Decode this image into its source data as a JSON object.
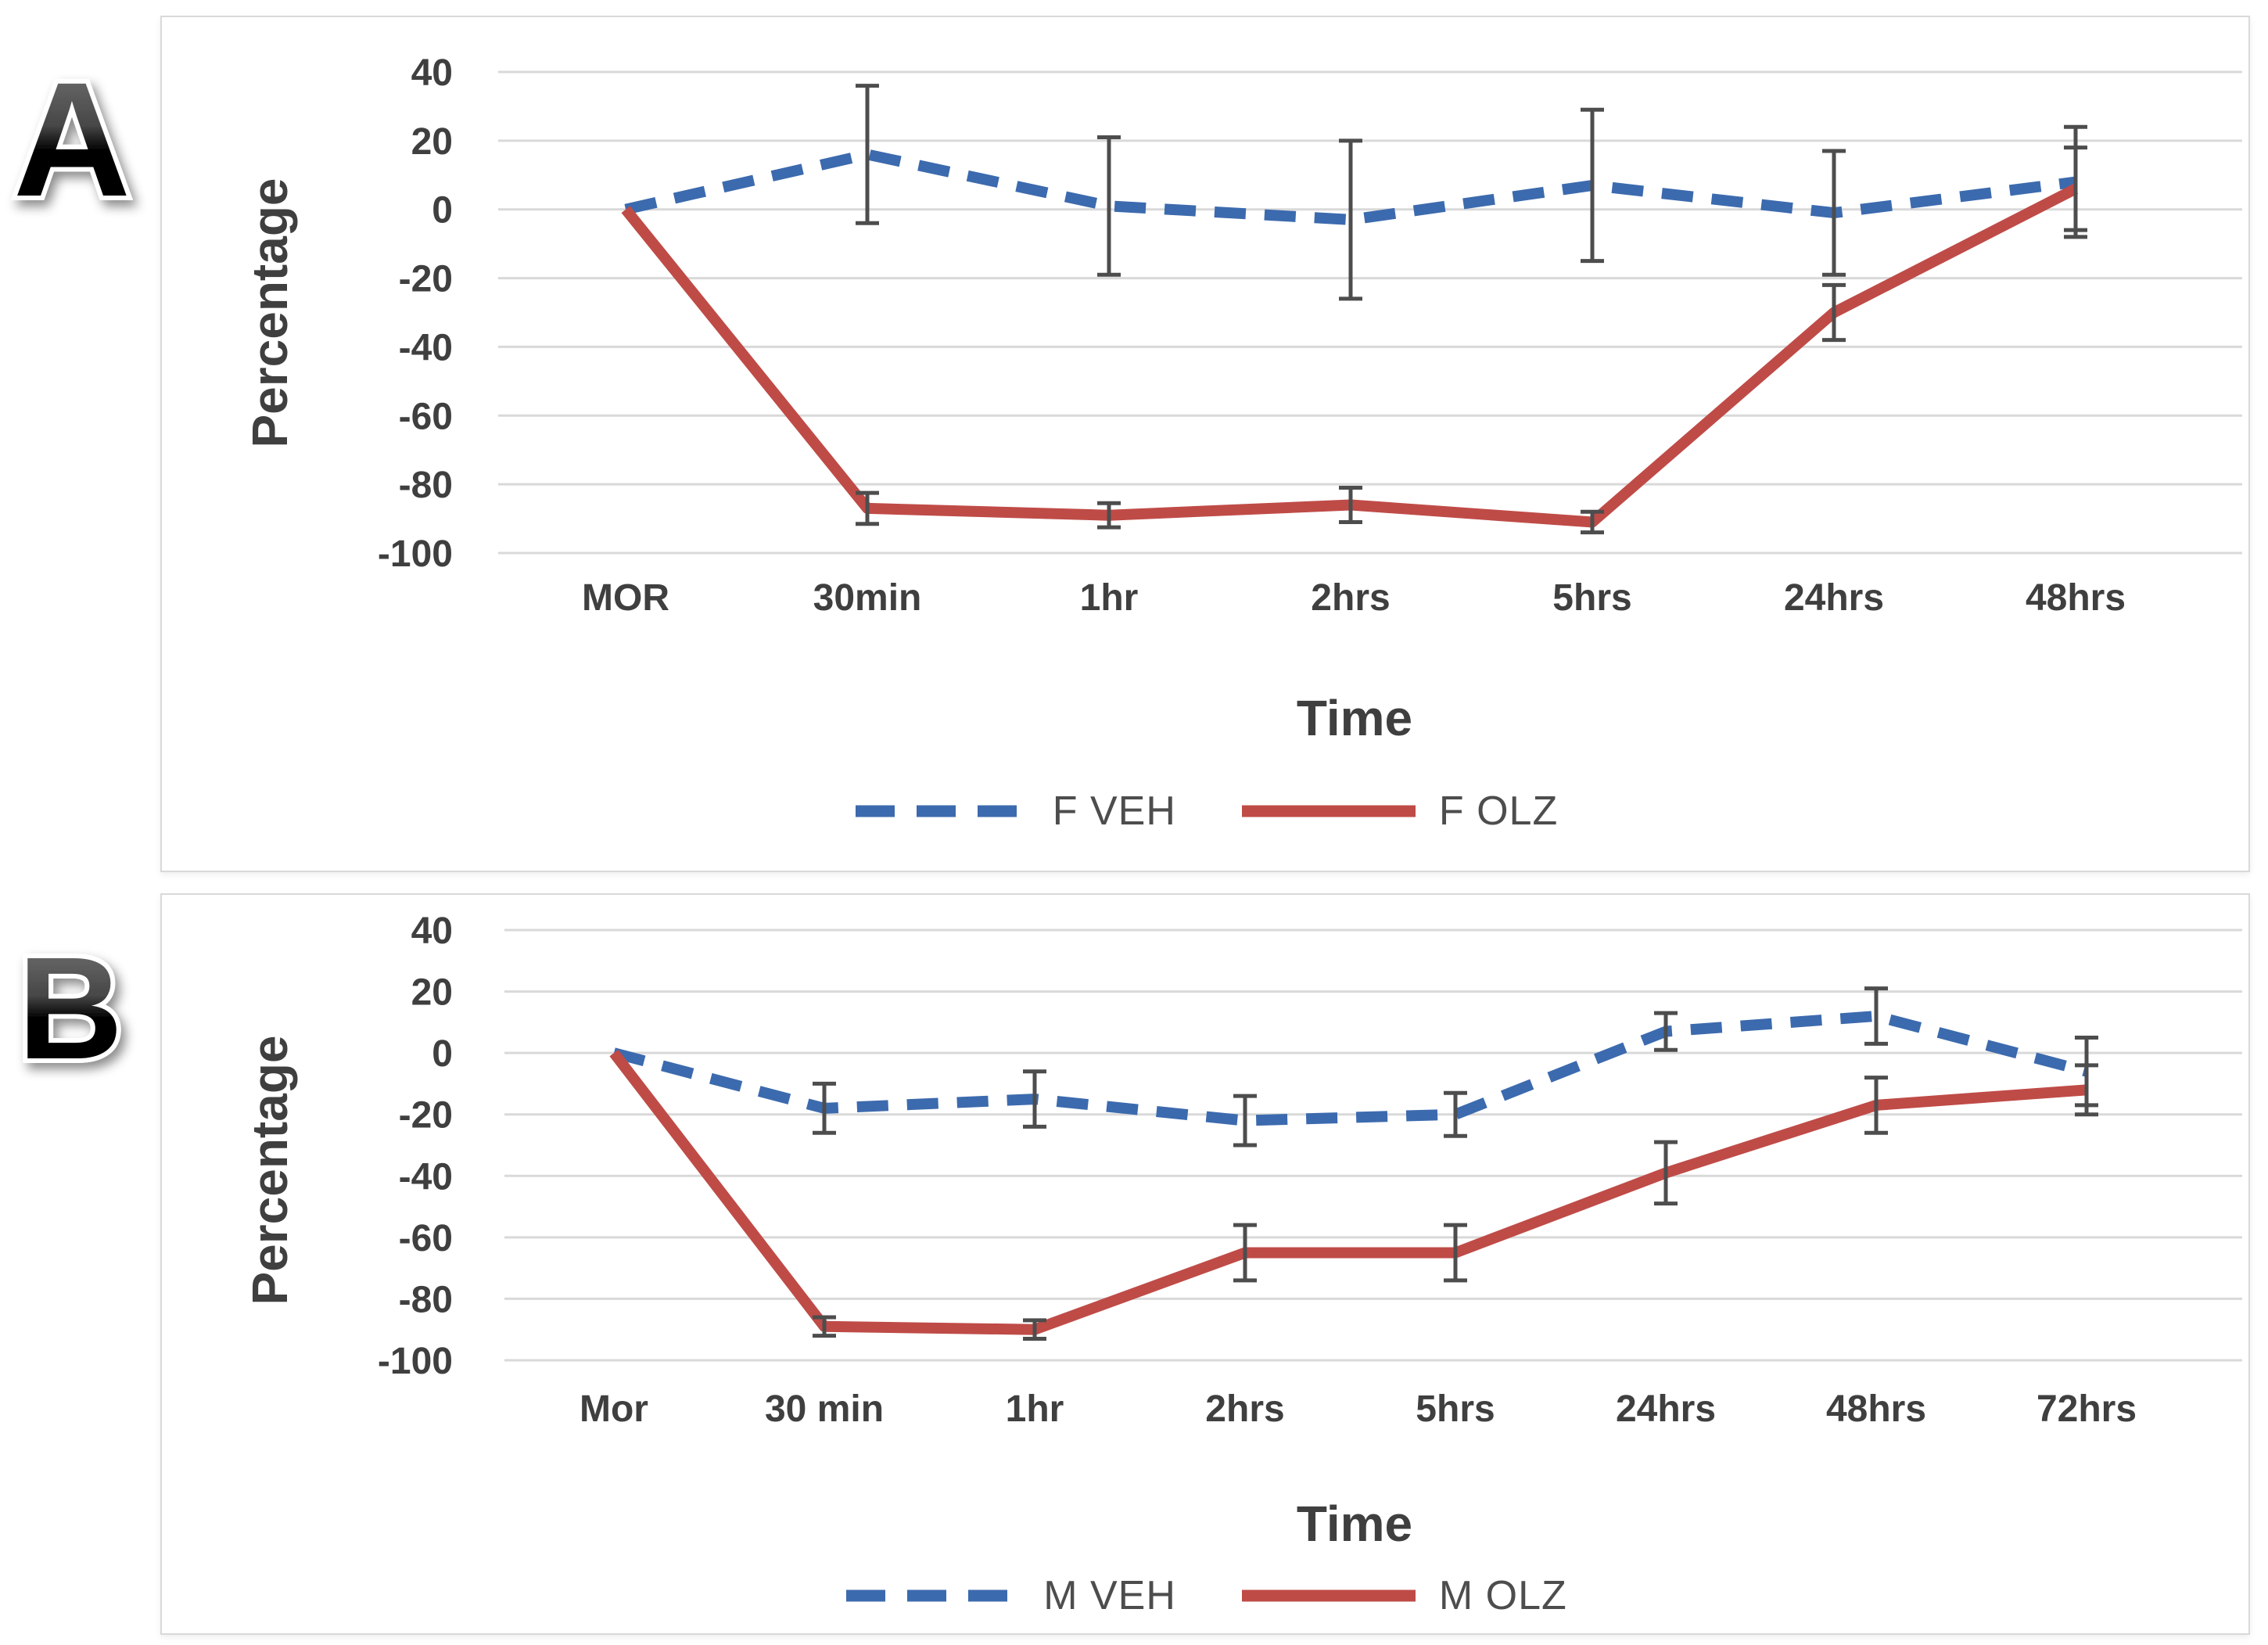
{
  "figure": {
    "background": "#FFFFFF",
    "panels": [
      {
        "label": "A"
      },
      {
        "label": "B"
      }
    ]
  },
  "style": {
    "panel_border_color": "#D9D9D9",
    "grid_color": "#D9D9D9",
    "error_bar_color": "#4D4D4D",
    "tick_text_color": "#3F3F3F",
    "axis_title_color": "#3F3F3F",
    "legend_text_color": "#4D4D4D",
    "veh_blue": "#3C6AAE",
    "olz_red": "#BF4B47"
  },
  "chart_data": [
    {
      "type": "line",
      "panel": "A",
      "title": "",
      "xlabel": "Time",
      "ylabel": "Percentage",
      "categories": [
        "MOR",
        "30min",
        "1hr",
        "2hrs",
        "5hrs",
        "24hrs",
        "48hrs"
      ],
      "yticks": [
        40,
        20,
        0,
        -20,
        -40,
        -60,
        -80,
        -100
      ],
      "ylim": [
        -100,
        40
      ],
      "grid": true,
      "legend_position": "bottom",
      "series": [
        {
          "name": "F VEH",
          "color": "#3C6AAE",
          "line_style": "dashed",
          "values": [
            0,
            16,
            1,
            -3,
            7,
            -1,
            8
          ],
          "errors": [
            0,
            20,
            20,
            23,
            22,
            18,
            16
          ]
        },
        {
          "name": "F OLZ",
          "color": "#BF4B47",
          "line_style": "solid",
          "values": [
            0,
            -87,
            -89,
            -86,
            -91,
            -30,
            6
          ],
          "errors": [
            0,
            4.5,
            3.5,
            5,
            3,
            8,
            12
          ]
        }
      ]
    },
    {
      "type": "line",
      "panel": "B",
      "title": "",
      "xlabel": "Time",
      "ylabel": "Percentage",
      "categories": [
        "Mor",
        "30 min",
        "1hr",
        "2hrs",
        "5hrs",
        "24hrs",
        "48hrs",
        "72hrs"
      ],
      "yticks": [
        40,
        20,
        0,
        -20,
        -40,
        -60,
        -80,
        -100
      ],
      "ylim": [
        -100,
        40
      ],
      "grid": true,
      "legend_position": "bottom",
      "series": [
        {
          "name": "M VEH",
          "color": "#3C6AAE",
          "line_style": "dashed",
          "values": [
            0,
            -18,
            -15,
            -22,
            -20,
            7,
            12,
            -6
          ],
          "errors": [
            0,
            8,
            9,
            8,
            7,
            6,
            9,
            11
          ]
        },
        {
          "name": "M OLZ",
          "color": "#BF4B47",
          "line_style": "solid",
          "values": [
            0,
            -89,
            -90,
            -65,
            -65,
            -39,
            -17,
            -12
          ],
          "errors": [
            0,
            3,
            3,
            9,
            9,
            10,
            9,
            8
          ]
        }
      ]
    }
  ]
}
